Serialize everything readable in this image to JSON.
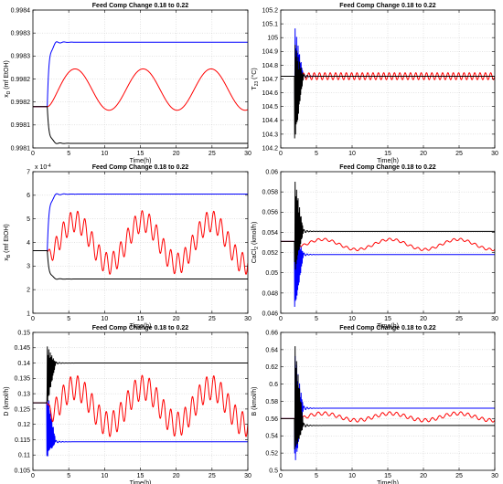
{
  "chart_data": [
    {
      "type": "line",
      "title": "Feed Comp Change 0.18 to 0.22",
      "xlabel": "Time(h)",
      "ylabel": "x_D (mf EtOH)",
      "xlim": [
        0,
        30
      ],
      "ylim": [
        0.9981,
        0.9984
      ],
      "xticks": [
        "0",
        "5",
        "10",
        "15",
        "20",
        "25",
        "30"
      ],
      "yticks": [
        "0.9981",
        "0.9981",
        "0.9982",
        "0.9982",
        "0.9983",
        "0.9983",
        "0.9984"
      ],
      "grid": true,
      "colors": {
        "blue": "#0000ff",
        "red": "#ff0000",
        "black": "#000000"
      },
      "series": [
        {
          "color": "blue",
          "pattern": "step",
          "initial": 0.99819,
          "final": 0.99833,
          "change_at": 2
        },
        {
          "color": "red",
          "pattern": "oscillating",
          "initial": 0.99819,
          "mean": 0.998227,
          "slow_amplitude": 4.5e-05,
          "slow_period_h": 9.5,
          "fast_amplitude": 0,
          "fast_period_h": 1.0
        },
        {
          "color": "black",
          "pattern": "step",
          "initial": 0.99819,
          "final": 0.99811,
          "change_at": 2
        }
      ]
    },
    {
      "type": "line",
      "title": "Feed Comp Change 0.18 to 0.22",
      "xlabel": "Time(h)",
      "ylabel": "T_23 (°C)",
      "xlim": [
        0,
        30
      ],
      "ylim": [
        104.2,
        105.2
      ],
      "xticks": [
        "0",
        "5",
        "10",
        "15",
        "20",
        "25",
        "30"
      ],
      "yticks": [
        "104.2",
        "104.3",
        "104.4",
        "104.5",
        "104.6",
        "104.7",
        "104.8",
        "104.9",
        "105",
        "105.1",
        "105.2"
      ],
      "grid": true,
      "colors": {
        "blue": "#0000ff",
        "red": "#ff0000",
        "black": "#000000"
      },
      "series": [
        {
          "color": "blue",
          "pattern": "spike",
          "initial": 104.72,
          "final": 104.72,
          "spike_hi": 105.07,
          "spike_lo": 104.48
        },
        {
          "color": "red",
          "pattern": "oscillating",
          "initial": 104.72,
          "mean": 104.72,
          "slow_amplitude": 0,
          "slow_period_h": 10,
          "fast_amplitude": 0.025,
          "fast_period_h": 0.75
        },
        {
          "color": "black",
          "pattern": "spike",
          "initial": 104.72,
          "final": 104.72,
          "spike_hi": 104.95,
          "spike_lo": 104.25
        }
      ]
    },
    {
      "type": "line",
      "title": "Feed Comp Change 0.18 to 0.22",
      "xlabel": "Time(h)",
      "ylabel": "x_B (mf EtOH)",
      "exponent_label": "x 10^-4",
      "xlim": [
        0,
        30
      ],
      "ylim": [
        1,
        7
      ],
      "xticks": [
        "0",
        "5",
        "10",
        "15",
        "20",
        "25",
        "30"
      ],
      "yticks": [
        "1",
        "2",
        "3",
        "4",
        "5",
        "6",
        "7"
      ],
      "grid": true,
      "colors": {
        "blue": "#0000ff",
        "red": "#ff0000",
        "black": "#000000"
      },
      "series": [
        {
          "color": "blue",
          "pattern": "step",
          "initial": 3.65,
          "final": 6.05,
          "change_at": 2
        },
        {
          "color": "red",
          "pattern": "oscillating",
          "initial": 3.65,
          "mean": 4.0,
          "slow_amplitude": 0.9,
          "slow_period_h": 9.5,
          "fast_amplitude": 0.45,
          "fast_period_h": 1.0
        },
        {
          "color": "black",
          "pattern": "step",
          "initial": 3.65,
          "final": 2.45,
          "change_at": 2
        }
      ]
    },
    {
      "type": "line",
      "title": "Feed Comp Change 0.18 to 0.22",
      "xlabel": "Time(h)",
      "ylabel": "CaCl_2 (kmol/h)",
      "xlim": [
        0,
        30
      ],
      "ylim": [
        0.046,
        0.06
      ],
      "xticks": [
        "0",
        "5",
        "10",
        "15",
        "20",
        "25",
        "30"
      ],
      "yticks": [
        "0.046",
        "0.048",
        "0.05",
        "0.052",
        "0.054",
        "0.056",
        "0.058",
        "0.06"
      ],
      "grid": true,
      "colors": {
        "blue": "#0000ff",
        "red": "#ff0000",
        "black": "#000000"
      },
      "series": [
        {
          "color": "blue",
          "pattern": "spike",
          "initial": 0.0531,
          "final": 0.0518,
          "spike_hi": 0.0548,
          "spike_lo": 0.0463
        },
        {
          "color": "red",
          "pattern": "oscillating",
          "initial": 0.0531,
          "mean": 0.0528,
          "slow_amplitude": 0.0005,
          "slow_period_h": 9.5,
          "fast_amplitude": 0.00012,
          "fast_period_h": 1.0
        },
        {
          "color": "black",
          "pattern": "spike",
          "initial": 0.0531,
          "final": 0.0541,
          "spike_hi": 0.0592,
          "spike_lo": 0.05
        }
      ]
    },
    {
      "type": "line",
      "title": "Feed Comp Change 0.18 to 0.22",
      "xlabel": "Time(h)",
      "ylabel": "D (kmol/h)",
      "xlim": [
        0,
        30
      ],
      "ylim": [
        0.105,
        0.15
      ],
      "xticks": [
        "0",
        "5",
        "10",
        "15",
        "20",
        "25",
        "30"
      ],
      "yticks": [
        "0.105",
        "0.11",
        "0.115",
        "0.12",
        "0.125",
        "0.13",
        "0.135",
        "0.14",
        "0.145",
        "0.15"
      ],
      "grid": true,
      "colors": {
        "blue": "#0000ff",
        "red": "#ff0000",
        "black": "#000000"
      },
      "series": [
        {
          "color": "blue",
          "pattern": "spike",
          "initial": 0.127,
          "final": 0.1143,
          "spike_hi": 0.131,
          "spike_lo": 0.109
        },
        {
          "color": "red",
          "pattern": "oscillating",
          "initial": 0.127,
          "mean": 0.126,
          "slow_amplitude": 0.006,
          "slow_period_h": 9.5,
          "fast_amplitude": 0.004,
          "fast_period_h": 1.0
        },
        {
          "color": "black",
          "pattern": "spike",
          "initial": 0.127,
          "final": 0.14,
          "spike_hi": 0.1455,
          "spike_lo": 0.1262
        }
      ]
    },
    {
      "type": "line",
      "title": "Feed Comp Change 0.18 to 0.22",
      "xlabel": "Time(h)",
      "ylabel": "B (kmol/h)",
      "xlim": [
        0,
        30
      ],
      "ylim": [
        0.5,
        0.66
      ],
      "xticks": [
        "0",
        "5",
        "10",
        "15",
        "20",
        "25",
        "30"
      ],
      "yticks": [
        "0.5",
        "0.52",
        "0.54",
        "0.56",
        "0.58",
        "0.6",
        "0.62",
        "0.64",
        "0.66"
      ],
      "grid": true,
      "colors": {
        "blue": "#0000ff",
        "red": "#ff0000",
        "black": "#000000"
      },
      "series": [
        {
          "color": "blue",
          "pattern": "spike",
          "initial": 0.56,
          "final": 0.572,
          "spike_hi": 0.634,
          "spike_lo": 0.503
        },
        {
          "color": "red",
          "pattern": "oscillating",
          "initial": 0.56,
          "mean": 0.562,
          "slow_amplitude": 0.004,
          "slow_period_h": 9.5,
          "fast_amplitude": 0.002,
          "fast_period_h": 1.0
        },
        {
          "color": "black",
          "pattern": "spike",
          "initial": 0.56,
          "final": 0.552,
          "spike_hi": 0.645,
          "spike_lo": 0.518
        }
      ]
    }
  ]
}
